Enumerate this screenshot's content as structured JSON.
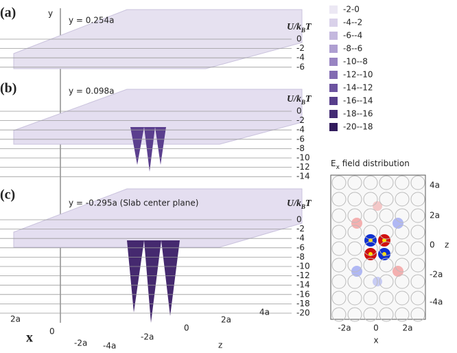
{
  "panels": [
    {
      "label": "(a)",
      "plane": "y = 0.254a",
      "ticks": [
        "0",
        "-2",
        "-4",
        "-6"
      ]
    },
    {
      "label": "(b)",
      "plane": "y = 0.098a",
      "ticks": [
        "0",
        "-2",
        "-4",
        "-6",
        "-8",
        "-10",
        "-12",
        "-14"
      ]
    },
    {
      "label": "(c)",
      "plane": "y = -0.295a (Slab center plane)",
      "ticks": [
        "0",
        "-2",
        "-4",
        "-6",
        "-8",
        "-10",
        "-12",
        "-14",
        "-16",
        "-18",
        "-20"
      ]
    }
  ],
  "unit": {
    "main": "U/k",
    "sub": "B",
    "end": "T"
  },
  "legend": [
    {
      "label": "-2-0",
      "color": "#ece8f4"
    },
    {
      "label": "-4--2",
      "color": "#d9d1ea"
    },
    {
      "label": "-6--4",
      "color": "#c4b8de"
    },
    {
      "label": "-8--6",
      "color": "#ae9ed1"
    },
    {
      "label": "-10--8",
      "color": "#9884c2"
    },
    {
      "label": "-12--10",
      "color": "#826bb2"
    },
    {
      "label": "-14--12",
      "color": "#6c53a0"
    },
    {
      "label": "-16--14",
      "color": "#573e8b"
    },
    {
      "label": "-18--16",
      "color": "#432b74"
    },
    {
      "label": "-20--18",
      "color": "#311b5c"
    }
  ],
  "field": {
    "title_main": "E",
    "title_sub": "x",
    "title_end": " field distribution",
    "z_ticks": [
      "4a",
      "2a",
      "0",
      "-2a",
      "-4a"
    ],
    "x_ticks": [
      "-2a",
      "0",
      "2a"
    ],
    "x_label": "x",
    "z_label": "z"
  },
  "axes3d": {
    "y_label": "y",
    "x_label": "x",
    "z_label": "z",
    "x_ticks": [
      "2a",
      "0",
      "-2a"
    ],
    "z_ticks": [
      "-4a",
      "-2a",
      "0",
      "2a",
      "4a"
    ]
  }
}
